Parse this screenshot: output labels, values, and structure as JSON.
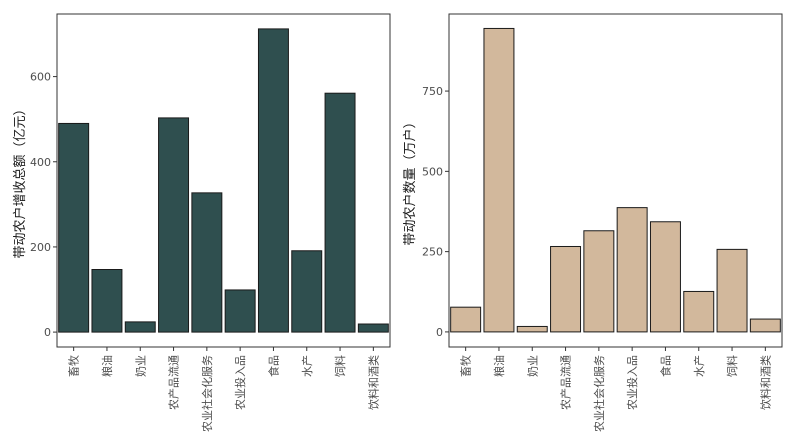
{
  "chart_data": [
    {
      "type": "bar",
      "title": "",
      "xlabel": "",
      "ylabel": "带动农户增收总额（亿元）",
      "categories": [
        "畜牧",
        "粮油",
        "奶业",
        "农产品流通",
        "农业社会化服务",
        "农业投入品",
        "食品",
        "水产",
        "饲料",
        "饮料和酒类"
      ],
      "values": [
        490,
        147,
        24,
        503,
        327,
        99,
        712,
        191,
        561,
        19
      ],
      "ylim": [
        -35,
        747
      ],
      "yticks": [
        0,
        200,
        400,
        600
      ],
      "bar_color": "#2f4f4f",
      "grid": false
    },
    {
      "type": "bar",
      "title": "",
      "xlabel": "",
      "ylabel": "带动农户数量（万户）",
      "categories": [
        "畜牧",
        "粮油",
        "奶业",
        "农产品流通",
        "农业社会化服务",
        "农业投入品",
        "食品",
        "水产",
        "饲料",
        "饮料和酒类"
      ],
      "values": [
        77,
        945,
        17,
        266,
        315,
        387,
        343,
        126,
        257,
        40
      ],
      "ylim": [
        -47,
        990
      ],
      "yticks": [
        0,
        250,
        500,
        750
      ],
      "bar_color": "#d2b89c",
      "grid": false
    }
  ]
}
